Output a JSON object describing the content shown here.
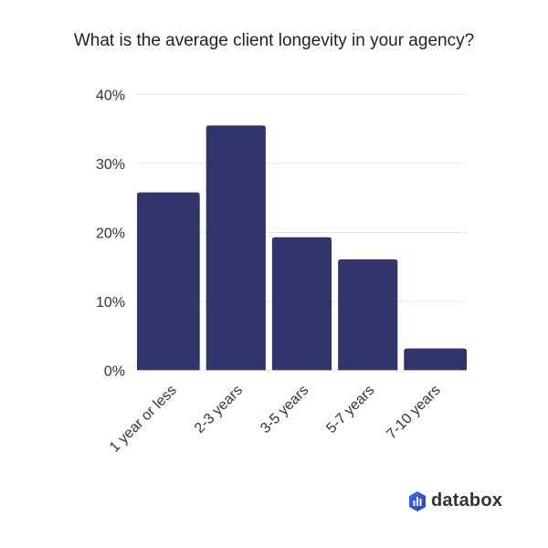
{
  "chart_data": {
    "type": "bar",
    "title": "What is the average client longevity in your agency?",
    "categories": [
      "1 year or less",
      "2-3 years",
      "3-5 years",
      "5-7 years",
      "7-10 years"
    ],
    "values": [
      25.8,
      35.5,
      19.3,
      16.1,
      3.2
    ],
    "ylim": [
      0,
      40
    ],
    "yticks": [
      "0%",
      "10%",
      "20%",
      "30%",
      "40%"
    ],
    "xlabel": "",
    "ylabel": "",
    "grid": true,
    "bar_color": "#31356b"
  },
  "logo": {
    "text": "databox"
  }
}
